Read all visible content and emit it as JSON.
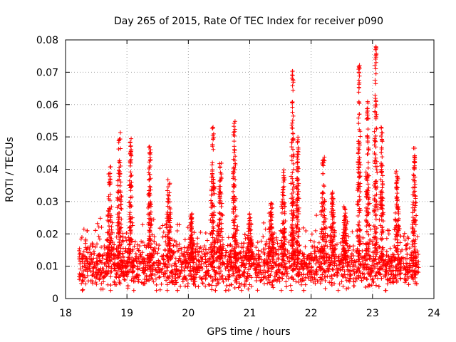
{
  "chart_data": {
    "type": "scatter",
    "title": "Day 265 of 2015, Rate Of TEC Index for receiver p090",
    "xlabel": "GPS time / hours",
    "ylabel": "ROTI / TECUs",
    "xlim": [
      18,
      24
    ],
    "ylim": [
      0,
      0.08
    ],
    "x_ticks": [
      18,
      19,
      20,
      21,
      22,
      23,
      24
    ],
    "x_tick_labels": [
      "18",
      "19",
      "20",
      "21",
      "22",
      "23",
      "24"
    ],
    "y_ticks": [
      0,
      0.01,
      0.02,
      0.03,
      0.04,
      0.05,
      0.06,
      0.07,
      0.08
    ],
    "y_tick_labels": [
      "0",
      "0.01",
      "0.02",
      "0.03",
      "0.04",
      "0.05",
      "0.06",
      "0.07",
      "0.08"
    ],
    "grid": true,
    "marker": "+",
    "series_color": "#ff0000",
    "x_data_range": [
      18.22,
      23.75
    ],
    "baseline_level": 0.01,
    "noise_spread": 0.012,
    "events": [
      {
        "x": 18.72,
        "width": 0.07,
        "peak": 0.041
      },
      {
        "x": 18.88,
        "width": 0.06,
        "peak": 0.052
      },
      {
        "x": 19.06,
        "width": 0.05,
        "peak": 0.05
      },
      {
        "x": 19.37,
        "width": 0.05,
        "peak": 0.048
      },
      {
        "x": 19.68,
        "width": 0.07,
        "peak": 0.037
      },
      {
        "x": 20.05,
        "width": 0.06,
        "peak": 0.027
      },
      {
        "x": 20.4,
        "width": 0.05,
        "peak": 0.053
      },
      {
        "x": 20.52,
        "width": 0.07,
        "peak": 0.042
      },
      {
        "x": 20.75,
        "width": 0.05,
        "peak": 0.055
      },
      {
        "x": 21.0,
        "width": 0.08,
        "peak": 0.027
      },
      {
        "x": 21.35,
        "width": 0.07,
        "peak": 0.03
      },
      {
        "x": 21.55,
        "width": 0.06,
        "peak": 0.04
      },
      {
        "x": 21.7,
        "width": 0.04,
        "peak": 0.071
      },
      {
        "x": 21.78,
        "width": 0.04,
        "peak": 0.05
      },
      {
        "x": 22.2,
        "width": 0.06,
        "peak": 0.044
      },
      {
        "x": 22.35,
        "width": 0.07,
        "peak": 0.033
      },
      {
        "x": 22.55,
        "width": 0.06,
        "peak": 0.03
      },
      {
        "x": 22.78,
        "width": 0.04,
        "peak": 0.073
      },
      {
        "x": 22.92,
        "width": 0.05,
        "peak": 0.061
      },
      {
        "x": 23.05,
        "width": 0.04,
        "peak": 0.078
      },
      {
        "x": 23.15,
        "width": 0.04,
        "peak": 0.053
      },
      {
        "x": 23.4,
        "width": 0.06,
        "peak": 0.04
      },
      {
        "x": 23.68,
        "width": 0.05,
        "peak": 0.047
      }
    ]
  }
}
